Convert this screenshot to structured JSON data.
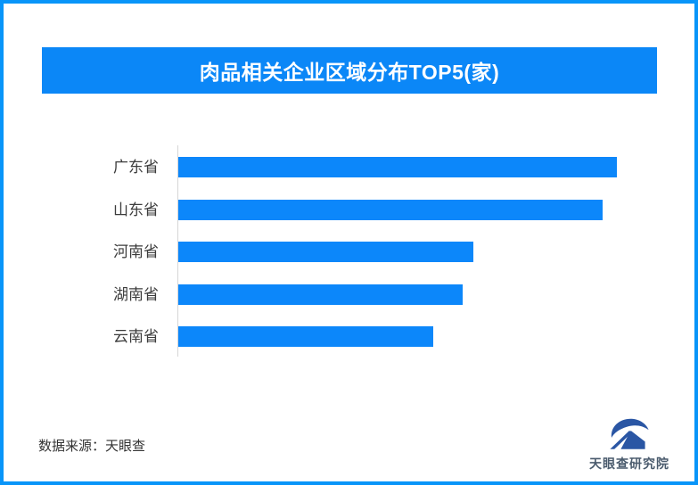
{
  "frame": {
    "border_color": "#0995f9",
    "background_color": "#ffffff"
  },
  "header": {
    "title": "肉品相关企业区域分布TOP5(家)",
    "bg_color": "#0b87f7",
    "text_color": "#ffffff"
  },
  "chart_data": {
    "type": "bar",
    "orientation": "horizontal",
    "title": "肉品相关企业区域分布TOP5(家)",
    "unit": "家",
    "categories": [
      "广东省",
      "山东省",
      "河南省",
      "湖南省",
      "云南省"
    ],
    "values": [
      100,
      96.7,
      67.3,
      64.8,
      58.1
    ],
    "values_note": "bars carry no numeric labels in the image; values are relative bar lengths, percent of longest bar (广东省 = 100)",
    "value_labels_shown": false,
    "grid": false,
    "legend": false,
    "bar_color": "#0c87fa",
    "axis_line_color": "#d6d6d6",
    "label_color": "#3c3c3c"
  },
  "footer": {
    "source_label": "数据来源：天眼查"
  },
  "logo": {
    "name": "天眼查研究院",
    "mark_color": "#2a56a4",
    "text_color": "#4a5b6d"
  }
}
